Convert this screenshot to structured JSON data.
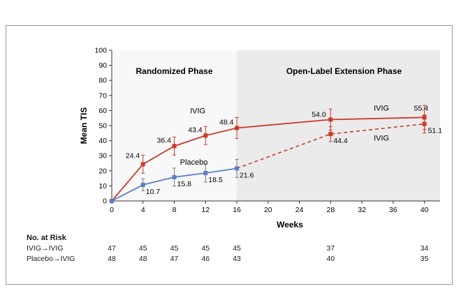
{
  "chart_data": {
    "type": "line",
    "ylabel": "Mean TIS",
    "xlabel": "Weeks",
    "ylim": [
      0,
      100
    ],
    "xlim": [
      0,
      42
    ],
    "yticks": [
      0,
      10,
      20,
      30,
      40,
      50,
      60,
      70,
      80,
      90,
      100
    ],
    "xticks": [
      0,
      4,
      8,
      12,
      16,
      20,
      24,
      28,
      32,
      36,
      40
    ],
    "phases": [
      {
        "label": "Randomized Phase",
        "range": [
          0,
          16
        ]
      },
      {
        "label": "Open-Label Extension Phase",
        "range": [
          16,
          42
        ]
      }
    ],
    "series": [
      {
        "name": "IVIG→IVIG",
        "color": "#cc3a2a",
        "x": [
          0,
          4,
          8,
          12,
          16,
          28,
          40
        ],
        "values": [
          0,
          24.4,
          36.4,
          43.4,
          48.4,
          54.0,
          55.4
        ],
        "value_labels": [
          "",
          "24.4",
          "36.4",
          "43.4",
          "48.4",
          "54.0",
          "55.4"
        ],
        "error": [
          0,
          6,
          6,
          6,
          7,
          7,
          8
        ],
        "annotations": [
          {
            "text": "IVIG",
            "x": 11,
            "y": 58
          },
          {
            "text": "IVIG",
            "x": 34.5,
            "y": 60
          }
        ]
      },
      {
        "name": "Placebo→IVIG",
        "color_randomized": "#5b7fc4",
        "color_extension": "#cc3a2a",
        "switch_x": 16,
        "x": [
          0,
          4,
          8,
          12,
          16,
          28,
          40
        ],
        "values": [
          0,
          10.7,
          15.8,
          18.5,
          21.6,
          44.4,
          51.1
        ],
        "value_labels": [
          "",
          "10.7",
          "15.8",
          "18.5",
          "21.6",
          "44.4",
          "51.1"
        ],
        "error": [
          0,
          4,
          6,
          6,
          6,
          5,
          6
        ],
        "annotations": [
          {
            "text": "Placebo",
            "x": 10.5,
            "y": 24
          },
          {
            "text": "IVIG",
            "x": 34.5,
            "y": 40
          }
        ]
      }
    ]
  },
  "risk_table": {
    "title": "No. at Risk",
    "weeks": [
      0,
      4,
      8,
      12,
      16,
      28,
      40
    ],
    "rows": [
      {
        "label": "IVIG→IVIG",
        "values": [
          "47",
          "45",
          "45",
          "45",
          "45",
          "37",
          "34"
        ]
      },
      {
        "label": "Placebo→IVIG",
        "values": [
          "48",
          "48",
          "47",
          "46",
          "43",
          "40",
          "35"
        ]
      }
    ]
  }
}
